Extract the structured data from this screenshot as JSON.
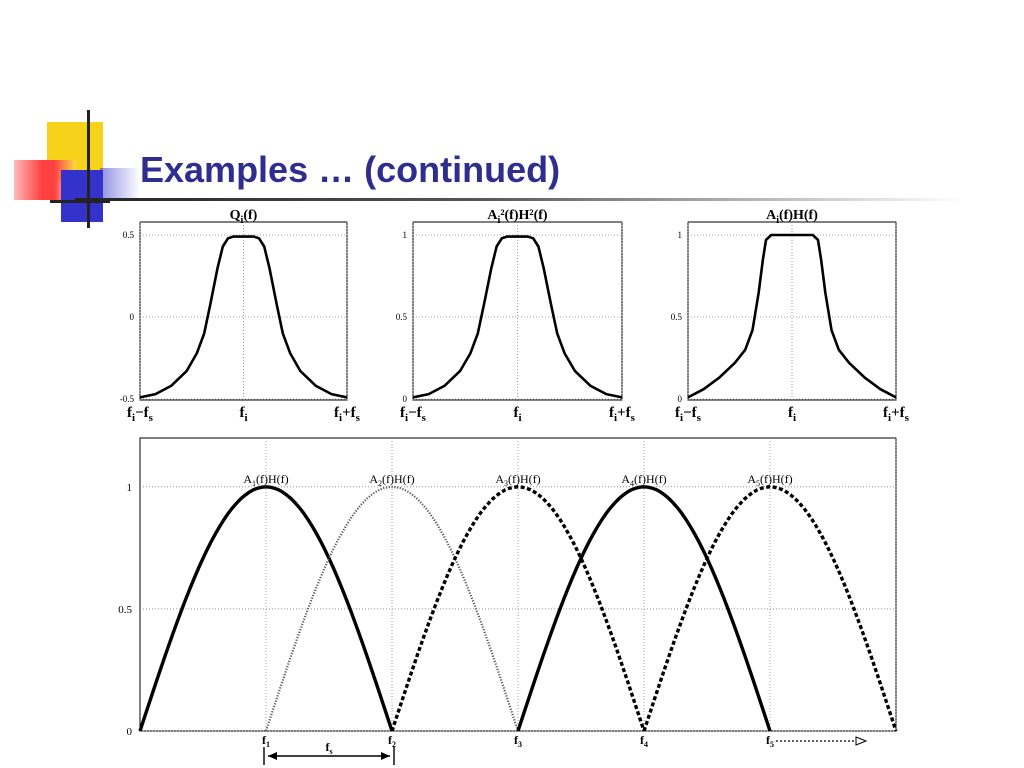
{
  "slide": {
    "title": "Examples … (continued)",
    "colors": {
      "title": "#2e2e8f",
      "deco_yellow": "#f7d21b",
      "deco_blue": "#3333cc",
      "deco_red": "#ff4b4b"
    }
  },
  "chart_data": [
    {
      "type": "line",
      "title": "Qi(f)",
      "title_parts": {
        "base": "Q",
        "sub": "i",
        "rest": "(f)"
      },
      "x_ticks": [
        "fi−fs",
        "fi",
        "fi+fs"
      ],
      "ylim": [
        -0.5,
        0.5
      ],
      "y_ticks": [
        "-0.5",
        "0",
        "0.5"
      ],
      "grid": true,
      "series": [
        {
          "x": [
            -1,
            -0.85,
            -0.7,
            -0.55,
            -0.45,
            -0.38,
            -0.32,
            -0.25,
            -0.2,
            -0.15,
            -0.1,
            0,
            0.1,
            0.15,
            0.2,
            0.25,
            0.32,
            0.38,
            0.45,
            0.55,
            0.7,
            0.85,
            1
          ],
          "y": [
            -0.49,
            -0.47,
            -0.42,
            -0.33,
            -0.22,
            -0.1,
            0.08,
            0.3,
            0.43,
            0.48,
            0.49,
            0.49,
            0.49,
            0.48,
            0.43,
            0.3,
            0.08,
            -0.1,
            -0.22,
            -0.33,
            -0.42,
            -0.47,
            -0.49
          ]
        }
      ]
    },
    {
      "type": "line",
      "title": "Ai²(f)H²(f)",
      "title_parts": {
        "base": "A",
        "sub": "i",
        "rest": "²(f)H²(f)"
      },
      "x_ticks": [
        "fi−fs",
        "fi",
        "fi+fs"
      ],
      "ylim": [
        0,
        1
      ],
      "y_ticks": [
        "0",
        "0.5",
        "1"
      ],
      "grid": true,
      "series": [
        {
          "x": [
            -1,
            -0.85,
            -0.7,
            -0.55,
            -0.45,
            -0.38,
            -0.32,
            -0.25,
            -0.2,
            -0.15,
            -0.1,
            0,
            0.1,
            0.15,
            0.2,
            0.25,
            0.32,
            0.38,
            0.45,
            0.55,
            0.7,
            0.85,
            1
          ],
          "y": [
            0.01,
            0.03,
            0.08,
            0.17,
            0.28,
            0.4,
            0.58,
            0.8,
            0.93,
            0.98,
            0.99,
            0.99,
            0.99,
            0.98,
            0.93,
            0.8,
            0.58,
            0.4,
            0.28,
            0.17,
            0.08,
            0.03,
            0.01
          ]
        }
      ]
    },
    {
      "type": "line",
      "title": "Ai(f)H(f)",
      "title_parts": {
        "base": "A",
        "sub": "i",
        "rest": "(f)H(f)"
      },
      "x_ticks": [
        "fi−fs",
        "fi",
        "fi+fs"
      ],
      "ylim": [
        0,
        1
      ],
      "y_ticks": [
        "0",
        "0.5",
        "1"
      ],
      "grid": true,
      "series": [
        {
          "x": [
            -1,
            -0.85,
            -0.7,
            -0.55,
            -0.45,
            -0.38,
            -0.32,
            -0.28,
            -0.25,
            -0.2,
            0,
            0.2,
            0.25,
            0.28,
            0.32,
            0.38,
            0.45,
            0.55,
            0.7,
            0.85,
            1
          ],
          "y": [
            0.01,
            0.06,
            0.13,
            0.22,
            0.3,
            0.42,
            0.65,
            0.85,
            0.97,
            1,
            1,
            1,
            0.97,
            0.85,
            0.65,
            0.42,
            0.3,
            0.22,
            0.13,
            0.06,
            0.01
          ]
        }
      ]
    },
    {
      "type": "line",
      "xlim": [
        0,
        6
      ],
      "ylim": [
        0,
        1.2
      ],
      "y_ticks": [
        0,
        0.5,
        1
      ],
      "x_ticks": [
        {
          "x": 1,
          "base": "f",
          "sub": "1"
        },
        {
          "x": 2,
          "base": "f",
          "sub": "2"
        },
        {
          "x": 3,
          "base": "f",
          "sub": "3"
        },
        {
          "x": 4,
          "base": "f",
          "sub": "4"
        },
        {
          "x": 5,
          "base": "f",
          "sub": "5"
        }
      ],
      "grid": true,
      "series": [
        {
          "name": "A1(f)H(f)",
          "name_parts": {
            "base": "A",
            "sub": "1",
            "rest": "(f)H(f)"
          },
          "center": 1,
          "style": "solid",
          "peak": 1
        },
        {
          "name": "A2(f)H(f)",
          "name_parts": {
            "base": "A",
            "sub": "2",
            "rest": "(f)H(f)"
          },
          "center": 2,
          "style": "dotted",
          "peak": 1
        },
        {
          "name": "A3(f)H(f)",
          "name_parts": {
            "base": "A",
            "sub": "3",
            "rest": "(f)H(f)"
          },
          "center": 3,
          "style": "dashed",
          "peak": 1
        },
        {
          "name": "A4(f)H(f)",
          "name_parts": {
            "base": "A",
            "sub": "4",
            "rest": "(f)H(f)"
          },
          "center": 4,
          "style": "solid",
          "peak": 1
        },
        {
          "name": "A5(f)H(f)",
          "name_parts": {
            "base": "A",
            "sub": "5",
            "rest": "(f)H(f)"
          },
          "center": 5,
          "style": "dashed",
          "peak": 1
        }
      ],
      "annotations": {
        "spacing": {
          "label": "fs",
          "base": "f",
          "sub": "s",
          "from": 1,
          "to": 2
        }
      }
    }
  ]
}
